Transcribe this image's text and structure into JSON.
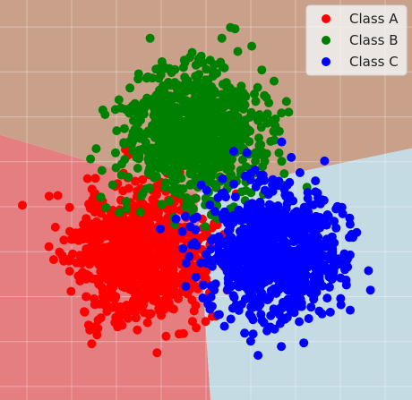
{
  "chart_data": {
    "type": "scatter",
    "title": "",
    "xlabel": "",
    "ylabel": "",
    "xlim": [
      -4.6,
      4.6
    ],
    "ylim": [
      -4.3,
      4.6
    ],
    "grid": true,
    "legend": {
      "position": "top-right",
      "entries": [
        {
          "label": "Class A",
          "color": "#ff0000"
        },
        {
          "label": "Class B",
          "color": "#008000"
        },
        {
          "label": "Class C",
          "color": "#0000ff"
        }
      ]
    },
    "decision_regions": [
      {
        "name": "Class A",
        "color": "#e47e80",
        "polygon": [
          [
            -4.6,
            1.6
          ],
          [
            -0.2,
            0.3
          ],
          [
            0.1,
            -4.3
          ],
          [
            -4.6,
            -4.3
          ]
        ]
      },
      {
        "name": "Class B",
        "color": "#c9a08a",
        "polygon": [
          [
            -4.6,
            4.6
          ],
          [
            4.6,
            4.6
          ],
          [
            4.6,
            1.3
          ],
          [
            -0.2,
            0.3
          ],
          [
            -4.6,
            1.6
          ]
        ]
      },
      {
        "name": "Class C",
        "color": "#c5dbe4",
        "polygon": [
          [
            4.6,
            1.3
          ],
          [
            -0.2,
            0.3
          ],
          [
            0.1,
            -4.3
          ],
          [
            4.6,
            -4.3
          ]
        ]
      }
    ],
    "series": [
      {
        "name": "Class A",
        "color": "#ff0000",
        "center": [
          -1.5,
          -1.0
        ],
        "spread": [
          0.75,
          0.72
        ],
        "count": 900,
        "seed": 11
      },
      {
        "name": "Class B",
        "color": "#008000",
        "center": [
          -0.3,
          1.6
        ],
        "spread": [
          0.75,
          0.72
        ],
        "count": 900,
        "seed": 23
      },
      {
        "name": "Class C",
        "color": "#0000ff",
        "center": [
          1.5,
          -1.0
        ],
        "spread": [
          0.75,
          0.72
        ],
        "count": 900,
        "seed": 37
      }
    ]
  },
  "colors": {
    "grid": "#ffffff",
    "legend_bg": "#f2f2f2",
    "legend_border": "#d8d8d8"
  }
}
